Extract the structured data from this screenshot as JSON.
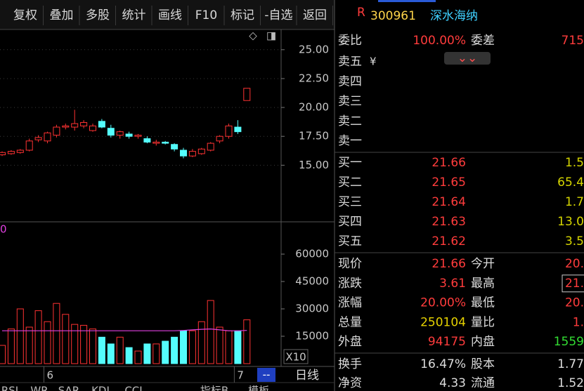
{
  "toolbar": [
    "复权",
    "叠加",
    "多股",
    "统计",
    "画线",
    "F10",
    "标记",
    "-自选",
    "返回"
  ],
  "chart_data": {
    "type": "candlestick",
    "categories": [
      null,
      null,
      null,
      null,
      null,
      "6",
      null,
      null,
      null,
      null,
      null,
      null,
      null,
      null,
      null,
      null,
      null,
      null,
      null,
      null,
      null,
      null,
      null,
      null,
      null,
      null,
      "7",
      null
    ],
    "candles": [
      [
        15.9,
        16.2,
        15.8,
        16.1
      ],
      [
        16.0,
        16.3,
        15.9,
        16.2
      ],
      [
        16.1,
        16.4,
        16.0,
        16.3
      ],
      [
        16.3,
        17.3,
        16.2,
        17.1
      ],
      [
        17.2,
        17.6,
        17.0,
        17.4
      ],
      [
        17.1,
        17.9,
        16.9,
        17.8
      ],
      [
        17.6,
        18.5,
        17.4,
        18.3
      ],
      [
        18.3,
        18.6,
        18.1,
        18.4
      ],
      [
        18.3,
        19.8,
        18.0,
        18.6
      ],
      [
        18.4,
        18.9,
        18.2,
        18.7
      ],
      [
        18.0,
        18.6,
        17.9,
        18.4
      ],
      [
        18.8,
        19.0,
        18.2,
        18.3
      ],
      [
        18.2,
        18.5,
        17.4,
        17.6
      ],
      [
        17.6,
        18.0,
        17.3,
        17.9
      ],
      [
        17.7,
        17.9,
        17.3,
        17.5
      ],
      [
        17.5,
        17.7,
        17.3,
        17.6
      ],
      [
        17.3,
        17.5,
        16.9,
        17.0
      ],
      [
        16.9,
        17.2,
        16.7,
        17.0
      ],
      [
        17.0,
        17.1,
        16.8,
        16.9
      ],
      [
        16.8,
        16.9,
        16.2,
        16.4
      ],
      [
        16.3,
        16.5,
        15.6,
        15.8
      ],
      [
        15.8,
        16.4,
        15.7,
        16.2
      ],
      [
        16.0,
        16.5,
        15.9,
        16.4
      ],
      [
        16.3,
        17.0,
        16.2,
        16.9
      ],
      [
        17.1,
        17.6,
        16.9,
        17.5
      ],
      [
        17.5,
        18.6,
        17.3,
        18.4
      ],
      [
        18.3,
        18.9,
        17.7,
        17.9
      ],
      [
        20.6,
        21.66,
        20.6,
        21.66
      ]
    ],
    "up_color": "#ff3232",
    "down_color": "#54fcfc",
    "ylim": [
      10.1,
      26.75
    ],
    "yticks": [
      {
        "value": 25,
        "label": "25.00"
      },
      {
        "value": 22.5,
        "label": "22.50"
      },
      {
        "value": 20,
        "label": "20.00"
      },
      {
        "value": 17.5,
        "label": "17.50"
      },
      {
        "value": 15,
        "label": "15.00"
      }
    ],
    "volume": {
      "values": [
        10000,
        19000,
        30000,
        20000,
        29000,
        23000,
        33000,
        27000,
        21500,
        21000,
        19000,
        14500,
        10800,
        14500,
        8800,
        6900,
        10800,
        10800,
        12300,
        14500,
        18000,
        18000,
        23000,
        34600,
        20000,
        18000,
        18000,
        24000
      ],
      "ma_values": [
        18000,
        18000,
        18000,
        18000,
        18000,
        18000,
        18000,
        18000,
        18000,
        18000,
        18000,
        18000,
        18000,
        18000,
        18000,
        18000,
        18000,
        18000,
        18000,
        18000,
        18200,
        18500,
        18800,
        19000,
        18500,
        18000,
        18000,
        18200
      ],
      "ma_color": "#e040e0",
      "ma_label": "0",
      "ylim": [
        0,
        77700
      ],
      "yticks": [
        15000,
        30000,
        45000,
        60000
      ],
      "unit_label": "X10"
    },
    "period_box": "--",
    "timeframe": "日线",
    "indicators": [
      "RSI",
      "WR",
      "SAR",
      "KDJ",
      "CCI",
      "指标B",
      "模板"
    ]
  },
  "quote": {
    "badge": "R",
    "code": "300961",
    "name": "深水海纳",
    "ratio_label": "委比",
    "ratio": "100.00%",
    "diff_label": "委差",
    "diff": "715",
    "asks": [
      "卖五",
      "卖四",
      "卖三",
      "卖二",
      "卖一"
    ],
    "ask_currency": "¥",
    "bids": [
      {
        "label": "买一",
        "price": "21.66",
        "volume": "1.5"
      },
      {
        "label": "买二",
        "price": "21.65",
        "volume": "65.4"
      },
      {
        "label": "买三",
        "price": "21.64",
        "volume": "1.7"
      },
      {
        "label": "买四",
        "price": "21.63",
        "volume": "13.0"
      },
      {
        "label": "买五",
        "price": "21.62",
        "volume": "3.5"
      }
    ],
    "stats": [
      {
        "label": "现价",
        "value": "21.66",
        "color": "#ff3c3c",
        "label2": "今开",
        "value2": "20.",
        "color2": "#ff3c3c"
      },
      {
        "label": "涨跌",
        "value": "3.61",
        "color": "#ff3c3c",
        "label2": "最高",
        "value2": "21.",
        "color2": "#ff3c3c"
      },
      {
        "label": "涨幅",
        "value": "20.00%",
        "color": "#ff3c3c",
        "label2": "最低",
        "value2": "20.",
        "color2": "#ff3c3c"
      },
      {
        "label": "总量",
        "value": "250104",
        "color": "#e6d200",
        "label2": "量比",
        "value2": "1.",
        "color2": "#ff3c3c"
      },
      {
        "label": "外盘",
        "value": "94175",
        "color": "#ff3c3c",
        "label2": "内盘",
        "value2": "1559",
        "color2": "#33dd33"
      },
      {
        "label": "换手",
        "value": "16.47%",
        "color": "#dddddd",
        "label2": "股本",
        "value2": "1.77",
        "color2": "#dddddd"
      },
      {
        "label": "净资",
        "value": "4.33",
        "color": "#dddddd",
        "label2": "流通",
        "value2": "1.52",
        "color2": "#dddddd"
      }
    ]
  }
}
